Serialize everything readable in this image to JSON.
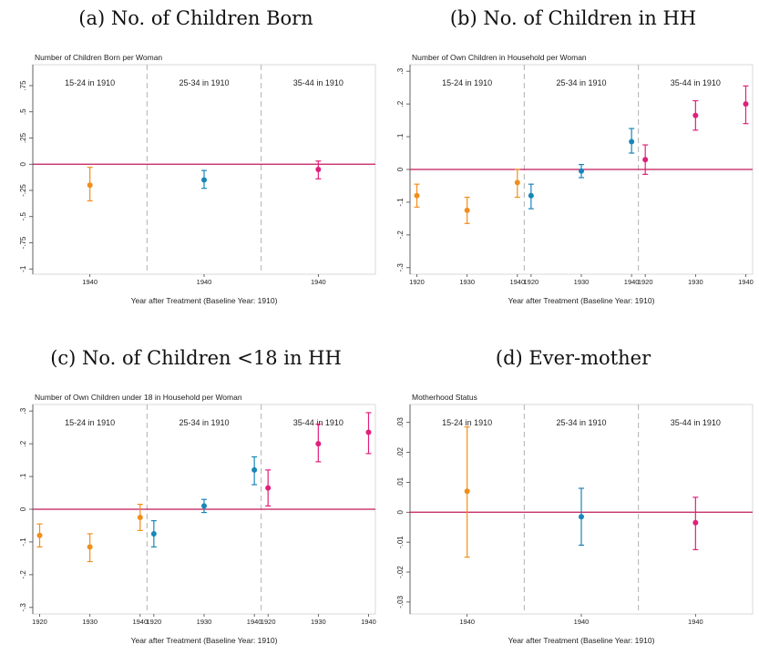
{
  "panel_captions": [
    "(a) No. of Children Born",
    "(b) No. of Children in HH",
    "(c) No. of Children <18 in HH",
    "(d) Ever-mother"
  ],
  "colors": {
    "group_1": "#f28e1b",
    "group_2": "#1a86b8",
    "group_3": "#e0207a",
    "zero_line": "#c2185b",
    "divider": "#b0b0b0"
  },
  "chart_data": [
    {
      "type": "scatter",
      "title": "Number of Children Born per Woman",
      "xlabel": "Year after Treatment (Baseline Year: 1910)",
      "ylabel": "",
      "ylim": [
        -1.05,
        0.95
      ],
      "yticks": [
        0.75,
        0.5,
        0.25,
        0,
        -0.25,
        -0.5,
        -0.75,
        -1
      ],
      "ytick_labels": [
        ".75",
        ".5",
        ".25",
        "0",
        "-.25",
        "-.5",
        "-.75",
        "-1"
      ],
      "groups": [
        "15-24 in 1910",
        "25-34 in 1910",
        "35-44 in 1910"
      ],
      "categories": [
        "1940"
      ],
      "series": [
        {
          "group": "15-24 in 1910",
          "x": [
            "1940"
          ],
          "y": [
            -0.2
          ],
          "ci_low": [
            -0.35
          ],
          "ci_high": [
            -0.03
          ]
        },
        {
          "group": "25-34 in 1910",
          "x": [
            "1940"
          ],
          "y": [
            -0.15
          ],
          "ci_low": [
            -0.23
          ],
          "ci_high": [
            -0.06
          ]
        },
        {
          "group": "35-44 in 1910",
          "x": [
            "1940"
          ],
          "y": [
            -0.05
          ],
          "ci_low": [
            -0.14
          ],
          "ci_high": [
            0.03
          ]
        }
      ]
    },
    {
      "type": "scatter",
      "title": "Number of Own Children in Household per Woman",
      "xlabel": "Year after Treatment (Baseline Year: 1910)",
      "ylabel": "",
      "ylim": [
        -0.32,
        0.32
      ],
      "yticks": [
        0.3,
        0.2,
        0.1,
        0,
        -0.1,
        -0.2,
        -0.3
      ],
      "ytick_labels": [
        ".3",
        ".2",
        ".1",
        "0",
        "-.1",
        "-.2",
        "-.3"
      ],
      "groups": [
        "15-24 in 1910",
        "25-34 in 1910",
        "35-44 in 1910"
      ],
      "categories": [
        "1920",
        "1930",
        "1940"
      ],
      "series": [
        {
          "group": "15-24 in 1910",
          "x": [
            "1920",
            "1930",
            "1940"
          ],
          "y": [
            -0.08,
            -0.125,
            -0.04
          ],
          "ci_low": [
            -0.115,
            -0.165,
            -0.085
          ],
          "ci_high": [
            -0.045,
            -0.085,
            0.0
          ]
        },
        {
          "group": "25-34 in 1910",
          "x": [
            "1920",
            "1930",
            "1940"
          ],
          "y": [
            -0.08,
            -0.005,
            0.085
          ],
          "ci_low": [
            -0.12,
            -0.025,
            0.05
          ],
          "ci_high": [
            -0.045,
            0.015,
            0.125
          ]
        },
        {
          "group": "35-44 in 1910",
          "x": [
            "1920",
            "1930",
            "1940"
          ],
          "y": [
            0.03,
            0.165,
            0.2
          ],
          "ci_low": [
            -0.015,
            0.12,
            0.14
          ],
          "ci_high": [
            0.075,
            0.21,
            0.255
          ]
        }
      ]
    },
    {
      "type": "scatter",
      "title": "Number of Own Children under 18 in Household per Woman",
      "xlabel": "Year after Treatment (Baseline Year: 1910)",
      "ylabel": "",
      "ylim": [
        -0.32,
        0.32
      ],
      "yticks": [
        0.3,
        0.2,
        0.1,
        0,
        -0.1,
        -0.2,
        -0.3
      ],
      "ytick_labels": [
        ".3",
        ".2",
        ".1",
        "0",
        "-.1",
        "-.2",
        "-.3"
      ],
      "groups": [
        "15-24 in 1910",
        "25-34 in 1910",
        "35-44 in 1910"
      ],
      "categories": [
        "1920",
        "1930",
        "1940"
      ],
      "series": [
        {
          "group": "15-24 in 1910",
          "x": [
            "1920",
            "1930",
            "1940"
          ],
          "y": [
            -0.08,
            -0.115,
            -0.025
          ],
          "ci_low": [
            -0.115,
            -0.16,
            -0.065
          ],
          "ci_high": [
            -0.045,
            -0.075,
            0.015
          ]
        },
        {
          "group": "25-34 in 1910",
          "x": [
            "1920",
            "1930",
            "1940"
          ],
          "y": [
            -0.075,
            0.01,
            0.12
          ],
          "ci_low": [
            -0.115,
            -0.01,
            0.075
          ],
          "ci_high": [
            -0.035,
            0.03,
            0.16
          ]
        },
        {
          "group": "35-44 in 1910",
          "x": [
            "1920",
            "1930",
            "1940"
          ],
          "y": [
            0.065,
            0.2,
            0.235
          ],
          "ci_low": [
            0.01,
            0.145,
            0.17
          ],
          "ci_high": [
            0.12,
            0.26,
            0.295
          ]
        }
      ]
    },
    {
      "type": "scatter",
      "title": "Motherhood Status",
      "xlabel": "Year after Treatment (Baseline Year: 1910)",
      "ylabel": "",
      "ylim": [
        -0.034,
        0.036
      ],
      "yticks": [
        0.03,
        0.02,
        0.01,
        0,
        -0.01,
        -0.02,
        -0.03
      ],
      "ytick_labels": [
        ".03",
        ".02",
        ".01",
        "0",
        "-.01",
        "-.02",
        "-.03"
      ],
      "groups": [
        "15-24 in 1910",
        "25-34 in 1910",
        "35-44 in 1910"
      ],
      "categories": [
        "1940"
      ],
      "series": [
        {
          "group": "15-24 in 1910",
          "x": [
            "1940"
          ],
          "y": [
            0.007
          ],
          "ci_low": [
            -0.015
          ],
          "ci_high": [
            0.0285
          ]
        },
        {
          "group": "25-34 in 1910",
          "x": [
            "1940"
          ],
          "y": [
            -0.0015
          ],
          "ci_low": [
            -0.011
          ],
          "ci_high": [
            0.008
          ]
        },
        {
          "group": "35-44 in 1910",
          "x": [
            "1940"
          ],
          "y": [
            -0.0035
          ],
          "ci_low": [
            -0.0125
          ],
          "ci_high": [
            0.005
          ]
        }
      ]
    }
  ]
}
